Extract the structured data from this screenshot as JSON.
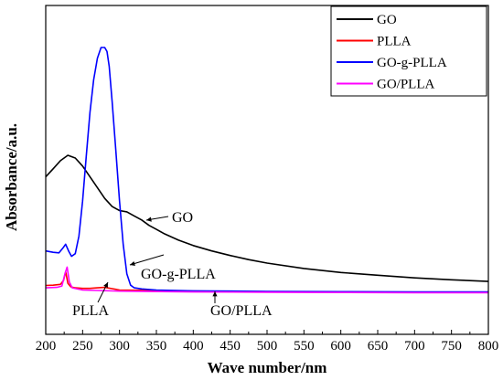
{
  "chart_data": {
    "type": "line",
    "title": "",
    "xlabel": "Wave number/nm",
    "ylabel": "Absorbance/a.u.",
    "xlim": [
      200,
      800
    ],
    "ylim": [
      0,
      1
    ],
    "x_ticks": [
      "200",
      "250",
      "300",
      "350",
      "400",
      "450",
      "500",
      "550",
      "600",
      "650",
      "700",
      "750",
      "800"
    ],
    "y_ticks_shown": false,
    "grid": false,
    "legend_position": "top-right",
    "series": [
      {
        "name": "GO",
        "color": "#000000",
        "points": [
          [
            200,
            0.52
          ],
          [
            210,
            0.55
          ],
          [
            220,
            0.58
          ],
          [
            230,
            0.6
          ],
          [
            240,
            0.59
          ],
          [
            250,
            0.56
          ],
          [
            260,
            0.52
          ],
          [
            270,
            0.48
          ],
          [
            280,
            0.44
          ],
          [
            290,
            0.41
          ],
          [
            300,
            0.395
          ],
          [
            310,
            0.39
          ],
          [
            320,
            0.375
          ],
          [
            330,
            0.36
          ],
          [
            340,
            0.34
          ],
          [
            350,
            0.325
          ],
          [
            360,
            0.31
          ],
          [
            380,
            0.285
          ],
          [
            400,
            0.265
          ],
          [
            425,
            0.245
          ],
          [
            450,
            0.228
          ],
          [
            475,
            0.213
          ],
          [
            500,
            0.2
          ],
          [
            550,
            0.18
          ],
          [
            600,
            0.165
          ],
          [
            650,
            0.155
          ],
          [
            700,
            0.145
          ],
          [
            750,
            0.138
          ],
          [
            800,
            0.132
          ]
        ]
      },
      {
        "name": "PLLA",
        "color": "#ff0000",
        "points": [
          [
            200,
            0.117
          ],
          [
            210,
            0.118
          ],
          [
            220,
            0.121
          ],
          [
            224,
            0.135
          ],
          [
            227,
            0.168
          ],
          [
            230,
            0.125
          ],
          [
            234,
            0.112
          ],
          [
            240,
            0.108
          ],
          [
            250,
            0.106
          ],
          [
            260,
            0.106
          ],
          [
            270,
            0.108
          ],
          [
            280,
            0.11
          ],
          [
            290,
            0.105
          ],
          [
            300,
            0.1
          ],
          [
            350,
            0.098
          ],
          [
            400,
            0.096
          ],
          [
            500,
            0.094
          ],
          [
            600,
            0.093
          ],
          [
            700,
            0.092
          ],
          [
            800,
            0.092
          ]
        ]
      },
      {
        "name": "GO-g-PLLA",
        "color": "#0000ff",
        "points": [
          [
            200,
            0.245
          ],
          [
            210,
            0.24
          ],
          [
            218,
            0.238
          ],
          [
            223,
            0.255
          ],
          [
            227,
            0.27
          ],
          [
            231,
            0.245
          ],
          [
            235,
            0.225
          ],
          [
            240,
            0.235
          ],
          [
            245,
            0.3
          ],
          [
            250,
            0.43
          ],
          [
            255,
            0.6
          ],
          [
            260,
            0.76
          ],
          [
            265,
            0.88
          ],
          [
            270,
            0.96
          ],
          [
            275,
            1.0
          ],
          [
            280,
            1.0
          ],
          [
            283,
            0.985
          ],
          [
            286,
            0.93
          ],
          [
            290,
            0.8
          ],
          [
            295,
            0.62
          ],
          [
            300,
            0.43
          ],
          [
            305,
            0.27
          ],
          [
            310,
            0.16
          ],
          [
            315,
            0.118
          ],
          [
            320,
            0.108
          ],
          [
            330,
            0.104
          ],
          [
            350,
            0.1
          ],
          [
            400,
            0.097
          ],
          [
            500,
            0.095
          ],
          [
            600,
            0.094
          ],
          [
            700,
            0.093
          ],
          [
            800,
            0.093
          ]
        ]
      },
      {
        "name": "GO/PLLA",
        "color": "#ff00ff",
        "points": [
          [
            200,
            0.108
          ],
          [
            215,
            0.11
          ],
          [
            222,
            0.115
          ],
          [
            226,
            0.16
          ],
          [
            229,
            0.185
          ],
          [
            232,
            0.13
          ],
          [
            236,
            0.108
          ],
          [
            250,
            0.1
          ],
          [
            300,
            0.096
          ],
          [
            400,
            0.093
          ],
          [
            500,
            0.092
          ],
          [
            600,
            0.091
          ],
          [
            700,
            0.09
          ],
          [
            800,
            0.09
          ]
        ]
      }
    ],
    "annotations": [
      {
        "text": "GO"
      },
      {
        "text": "GO-g-PLLA"
      },
      {
        "text": "PLLA"
      },
      {
        "text": "GO/PLLA"
      }
    ]
  }
}
